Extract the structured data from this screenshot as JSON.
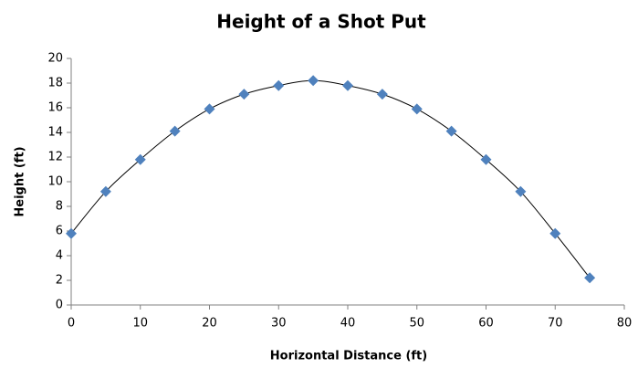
{
  "chart_data": {
    "type": "scatter",
    "title": "Height of a Shot Put",
    "xlabel": "Horizontal Distance (ft)",
    "ylabel": "Height (ft)",
    "x": [
      0,
      5,
      10,
      15,
      20,
      25,
      30,
      35,
      40,
      45,
      50,
      55,
      60,
      65,
      70,
      75
    ],
    "series": [
      {
        "color": "#4f81bd",
        "values": [
          5.8,
          9.2,
          11.8,
          14.1,
          15.9,
          17.1,
          17.8,
          18.2,
          17.8,
          17.1,
          15.9,
          14.1,
          11.8,
          9.2,
          5.8,
          2.2
        ]
      }
    ],
    "trendline": true,
    "xlim": [
      0,
      80
    ],
    "xticks": [
      0,
      10,
      20,
      30,
      40,
      50,
      60,
      70,
      80
    ],
    "ylim": [
      0,
      20
    ],
    "yticks": [
      0,
      2,
      4,
      6,
      8,
      10,
      12,
      14,
      16,
      18,
      20
    ],
    "grid": false
  }
}
